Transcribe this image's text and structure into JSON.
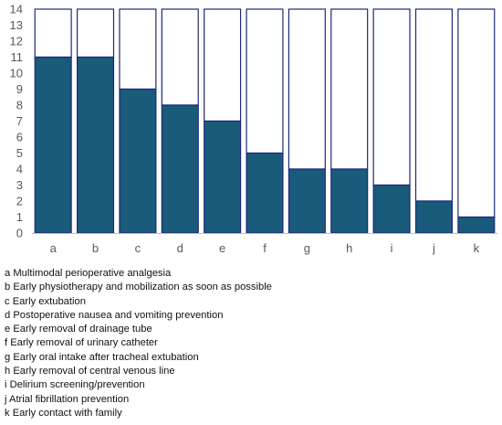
{
  "colors": {
    "filled": "#1a5a7a",
    "outline": "#1c2a7c",
    "axis": "#bfbfbf",
    "tick_text": "#595959"
  },
  "chart_data": {
    "type": "bar",
    "stacked_with_remainder": true,
    "categories": [
      "a",
      "b",
      "c",
      "d",
      "e",
      "f",
      "g",
      "h",
      "i",
      "j",
      "k"
    ],
    "values": [
      11,
      11,
      9,
      8,
      7,
      5,
      4,
      4,
      3,
      2,
      1
    ],
    "total": 14,
    "ylim": [
      0,
      14
    ],
    "yticks": [
      0,
      1,
      2,
      3,
      4,
      5,
      6,
      7,
      8,
      9,
      10,
      11,
      12,
      13,
      14
    ],
    "grid": false,
    "title": "",
    "xlabel": "",
    "ylabel": ""
  },
  "legend": [
    "a Multimodal perioperative analgesia",
    "b Early physiotherapy and mobilization as soon as possible",
    "c Early extubation",
    "d Postoperative nausea and vomiting prevention",
    "e Early removal of drainage tube",
    "f Early removal of urinary catheter",
    "g Early oral intake after tracheal extubation",
    "h Early removal of central venous line",
    "i Delirium screening/prevention",
    "j Atrial fibrillation prevention",
    "k Early contact with family"
  ]
}
